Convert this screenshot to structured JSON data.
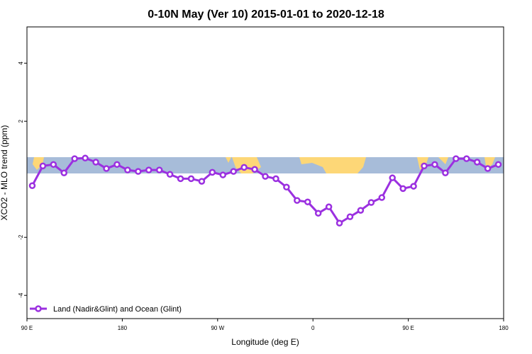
{
  "chart_data": {
    "type": "line",
    "title": "0-10N May (Ver 10)   2015-01-01 to 2020-12-18",
    "x_label": "Longitude (deg E)",
    "y_label": "XCO2 - MLO trend (ppm)",
    "xlim": [
      90,
      540
    ],
    "xticks": [
      {
        "value": 90,
        "label": "90 E"
      },
      {
        "value": 180,
        "label": "180"
      },
      {
        "value": 270,
        "label": "90 W"
      },
      {
        "value": 360,
        "label": "0"
      },
      {
        "value": 450,
        "label": "90 E"
      },
      {
        "value": 540,
        "label": "180"
      }
    ],
    "ylim": [
      -4.8,
      5.25
    ],
    "yticks": [
      -4,
      -2,
      2,
      4
    ],
    "legend": "bottom-left",
    "x": [
      95,
      105,
      115,
      125,
      135,
      145,
      155,
      165,
      175,
      185,
      195,
      205,
      215,
      225,
      235,
      245,
      255,
      265,
      275,
      285,
      295,
      305,
      315,
      325,
      335,
      345,
      355,
      365,
      375,
      385,
      395,
      405,
      415,
      425,
      435,
      445,
      455,
      465,
      475,
      485,
      495,
      505,
      515,
      525,
      535
    ],
    "series": [
      {
        "name": "Land (Nadir&Glint) and Ocean (Glint)",
        "color": "#9b30e0",
        "values": [
          -0.22,
          0.46,
          0.51,
          0.22,
          0.71,
          0.73,
          0.59,
          0.37,
          0.51,
          0.32,
          0.27,
          0.32,
          0.32,
          0.17,
          0.02,
          0.02,
          -0.07,
          0.24,
          0.15,
          0.27,
          0.41,
          0.34,
          0.1,
          0.02,
          -0.27,
          -0.73,
          -0.78,
          -1.17,
          -0.95,
          -1.51,
          -1.29,
          -1.07,
          -0.8,
          -0.63,
          0.05,
          -0.32,
          -0.24,
          0.46,
          0.51,
          0.22,
          0.71,
          0.71,
          0.59,
          0.37,
          0.51
        ]
      }
    ]
  }
}
